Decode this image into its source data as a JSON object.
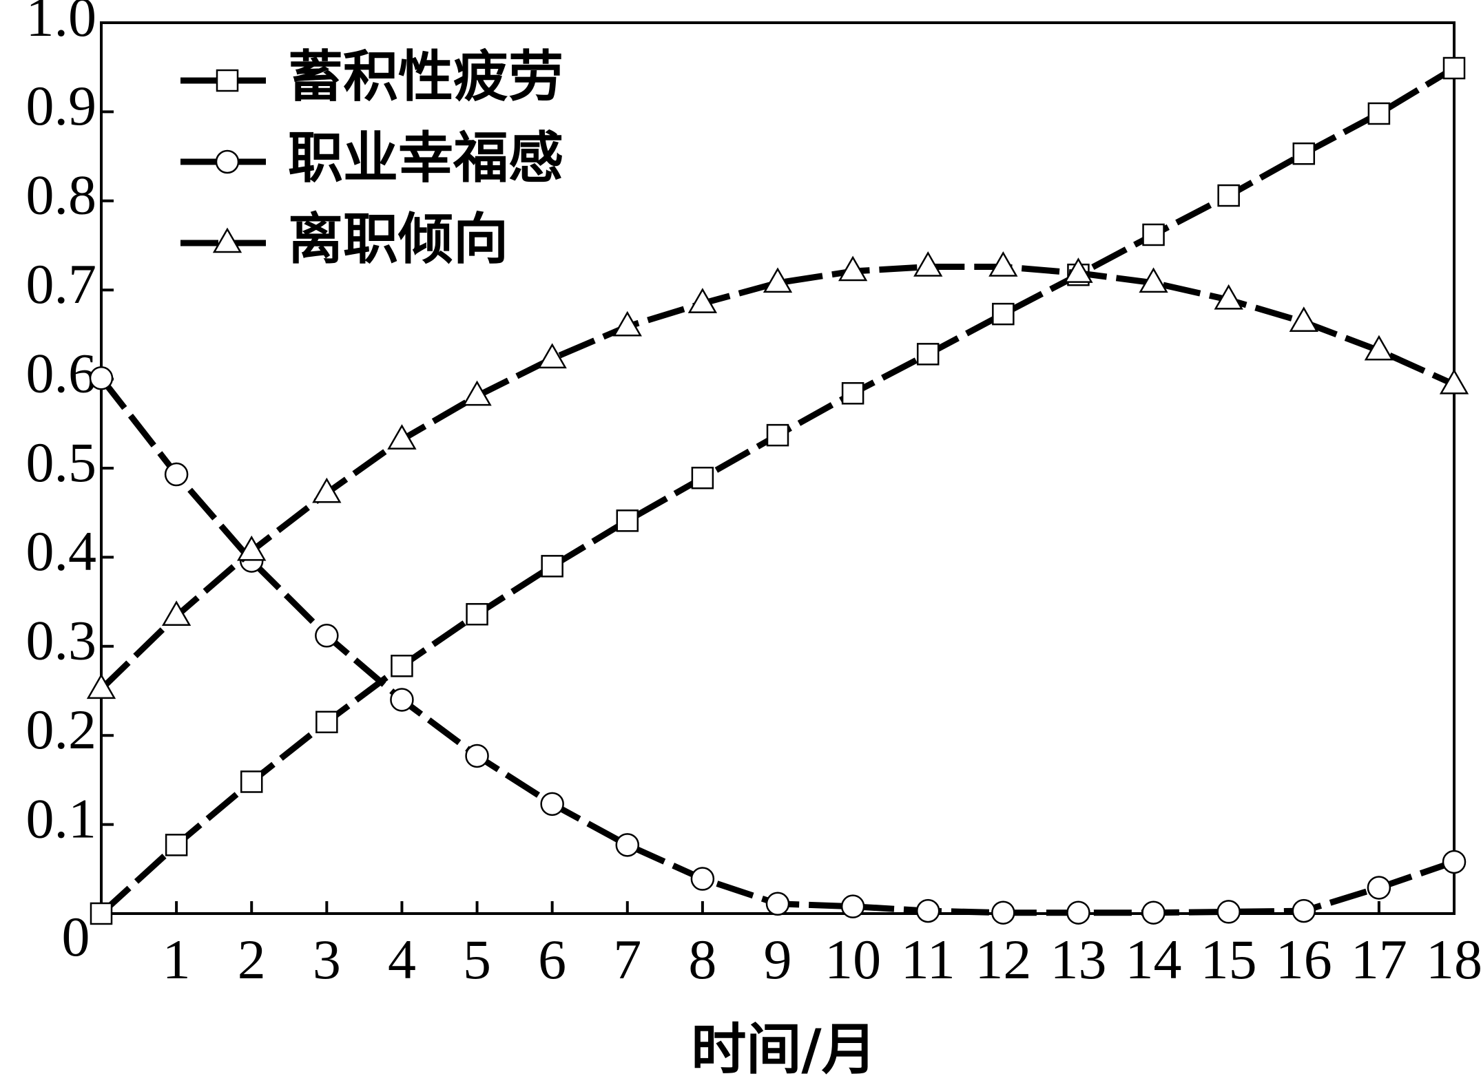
{
  "chart_data": {
    "type": "line",
    "x_label": "时间/月",
    "x": [
      0,
      1,
      2,
      3,
      4,
      5,
      6,
      7,
      8,
      9,
      10,
      11,
      12,
      13,
      14,
      15,
      16,
      17,
      18
    ],
    "series": [
      {
        "name": "蓄积性疲劳",
        "color": "#000000",
        "marker": "square",
        "values": [
          0.0,
          0.077,
          0.148,
          0.215,
          0.278,
          0.336,
          0.39,
          0.441,
          0.489,
          0.537,
          0.584,
          0.628,
          0.673,
          0.717,
          0.762,
          0.806,
          0.853,
          0.898,
          0.949
        ]
      },
      {
        "name": "职业幸福感",
        "color": "#000000",
        "marker": "circle",
        "values": [
          0.601,
          0.493,
          0.396,
          0.312,
          0.24,
          0.177,
          0.123,
          0.077,
          0.039,
          0.011,
          0.008,
          0.003,
          0.001,
          0.001,
          0.001,
          0.002,
          0.003,
          0.029,
          0.058
        ]
      },
      {
        "name": "离职倾向",
        "color": "#000000",
        "marker": "triangle",
        "values": [
          0.252,
          0.334,
          0.407,
          0.472,
          0.532,
          0.581,
          0.623,
          0.659,
          0.685,
          0.708,
          0.721,
          0.726,
          0.726,
          0.719,
          0.708,
          0.689,
          0.664,
          0.632,
          0.594
        ]
      }
    ],
    "xlim": [
      0,
      18
    ],
    "xticks": [
      1,
      2,
      3,
      4,
      5,
      6,
      7,
      8,
      9,
      10,
      11,
      12,
      13,
      14,
      15,
      16,
      17,
      18
    ],
    "ylim": [
      0,
      1
    ],
    "yticks": [
      0,
      0.1,
      0.2,
      0.3,
      0.4,
      0.5,
      0.6,
      0.7,
      0.8,
      0.9,
      {
        "value": 1,
        "label": "1.0"
      }
    ],
    "legend": "top-left"
  }
}
